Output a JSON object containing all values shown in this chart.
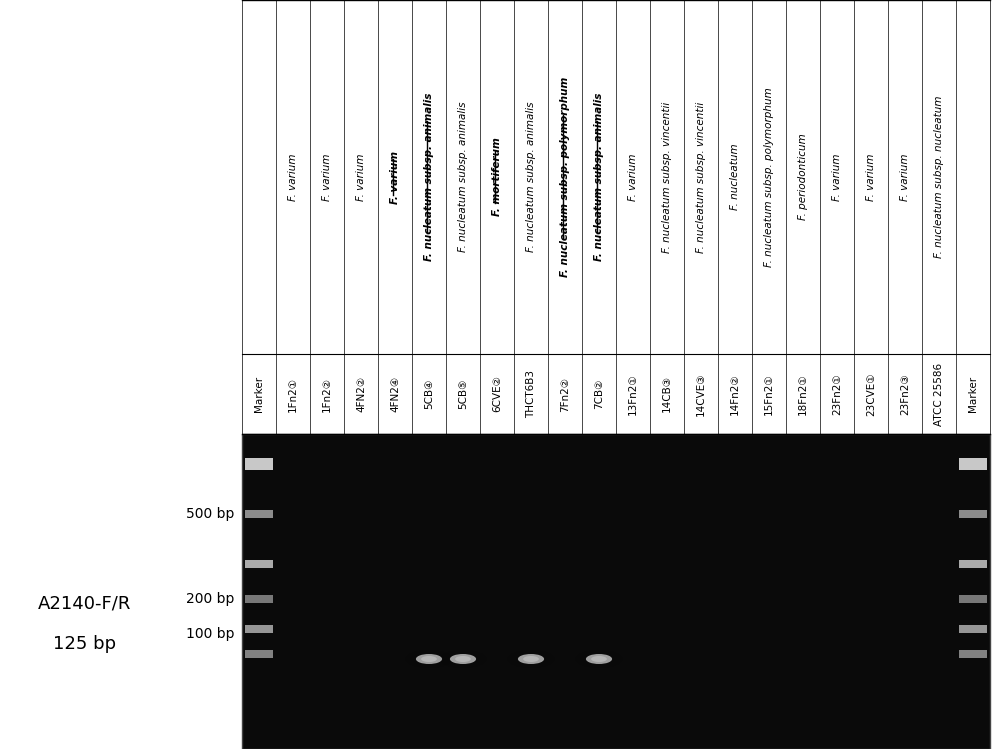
{
  "lane_labels": [
    "Marker",
    "1Fn2①",
    "1Fn2②",
    "4FN2②",
    "4FN2④",
    "5CB④",
    "5CB⑤",
    "6CVE②",
    "THCT6B3",
    "7Fn2②",
    "7CB②",
    "13Fn2①",
    "14CB③",
    "14CVE③",
    "14Fn2②",
    "15Fn2①",
    "18Fn2①",
    "23Fn2①",
    "23CVE①",
    "23Fn2③",
    "ATCC 25586",
    "Marker"
  ],
  "species_labels": [
    "",
    "F. varium",
    "F. varium",
    "F. varium",
    "F. varium",
    "F. nucleatum subsp. animalis",
    "F. nucleatum subsp. animalis",
    "F. mortiferum",
    "F. nucleatum subsp. animalis",
    "F. nucleatum subsp. polymorphum",
    "F. nucleatum subsp. animalis",
    "F. varium",
    "F. nucleatum subsp. vincentii",
    "F. nucleatum subsp. vincentii",
    "F. nucleatum",
    "F. nucleatum subsp. polymorphum",
    "F. periodonticum",
    "F. varium",
    "F. varium",
    "F. varium",
    "F. nucleatum subsp. nucleatum",
    ""
  ],
  "bold_underline_lanes": [
    4,
    5,
    7,
    9,
    10
  ],
  "band_lanes": [
    5,
    6,
    8,
    10
  ],
  "marker_lanes": [
    0,
    21
  ],
  "bg_color": "#000000",
  "gel_color": "#111111",
  "band_color_bright": "#e0e0e0",
  "marker_band_color": "#cccccc",
  "bp_labels": [
    "500 bp",
    "200 bp",
    "100 bp"
  ],
  "primer_label": "A2140-F/R\n125 bp",
  "figure_width": 10.0,
  "figure_height": 7.49
}
